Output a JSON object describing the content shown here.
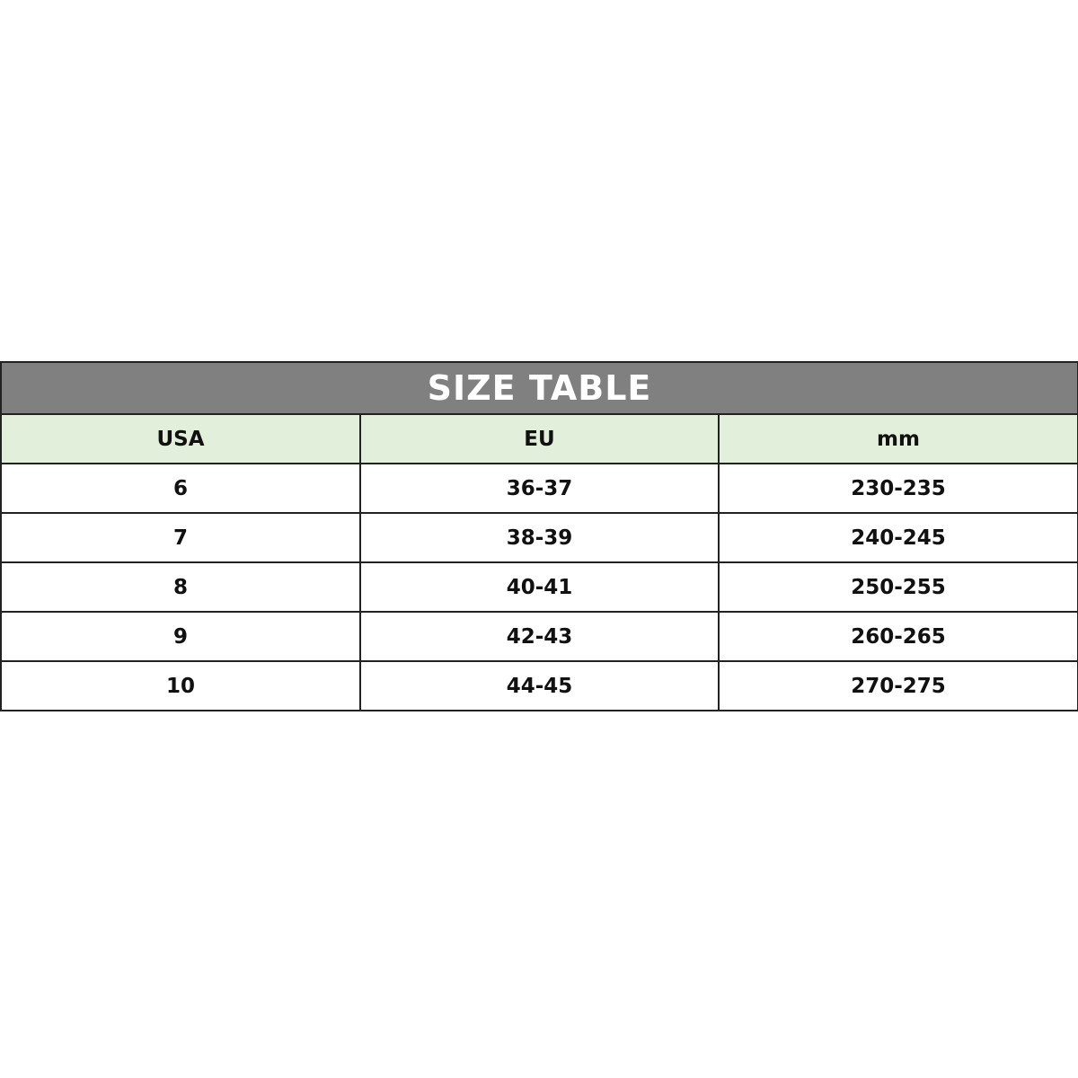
{
  "table": {
    "title": "SIZE TABLE",
    "header_color": "#808080",
    "column_header_color": "#e2efda",
    "columns": [
      "USA",
      "EU",
      "mm"
    ],
    "rows": [
      [
        "6",
        "36-37",
        "230-235"
      ],
      [
        "7",
        "38-39",
        "240-245"
      ],
      [
        "8",
        "40-41",
        "250-255"
      ],
      [
        "9",
        "42-43",
        "260-265"
      ],
      [
        "10",
        "44-45",
        "270-275"
      ]
    ]
  }
}
